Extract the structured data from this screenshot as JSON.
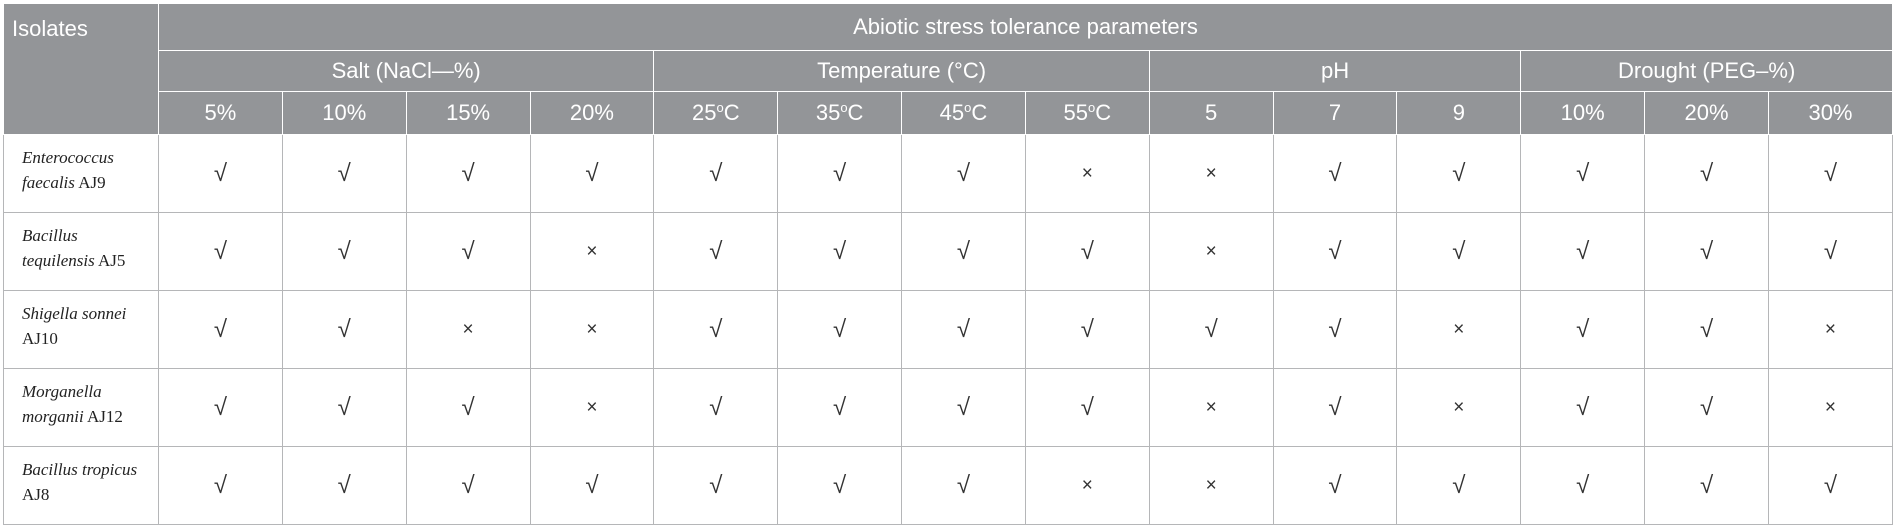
{
  "header": {
    "isolates_label": "Isolates",
    "group_title": "Abiotic stress tolerance parameters",
    "groups": [
      {
        "label": "Salt (NaCl—%)",
        "span": 4,
        "columns": [
          "5%",
          "10%",
          "15%",
          "20%"
        ]
      },
      {
        "label": "Temperature (°C)",
        "span": 4,
        "columns": [
          "25°C",
          "35°C",
          "45°C",
          "55°C"
        ]
      },
      {
        "label": "pH",
        "span": 3,
        "columns": [
          "5",
          "7",
          "9"
        ]
      },
      {
        "label": "Drought (PEG–%)",
        "span": 3,
        "columns": [
          "10%",
          "20%",
          "30%"
        ]
      }
    ]
  },
  "rows": [
    {
      "species": "Enterococcus faecalis",
      "strain": "AJ9",
      "values": [
        "√",
        "√",
        "√",
        "√",
        "√",
        "√",
        "√",
        "×",
        "×",
        "√",
        "√",
        "√",
        "√",
        "√"
      ]
    },
    {
      "species": "Bacillus tequilensis",
      "strain": "AJ5",
      "values": [
        "√",
        "√",
        "√",
        "×",
        "√",
        "√",
        "√",
        "√",
        "×",
        "√",
        "√",
        "√",
        "√",
        "√"
      ]
    },
    {
      "species": "Shigella sonnei",
      "strain": "AJ10",
      "values": [
        "√",
        "√",
        "×",
        "×",
        "√",
        "√",
        "√",
        "√",
        "√",
        "√",
        "×",
        "√",
        "√",
        "×"
      ]
    },
    {
      "species": "Morganella morganii",
      "strain": "AJ12",
      "values": [
        "√",
        "√",
        "√",
        "×",
        "√",
        "√",
        "√",
        "√",
        "×",
        "√",
        "×",
        "√",
        "√",
        "×"
      ]
    },
    {
      "species": "Bacillus tropicus",
      "strain": "AJ8",
      "values": [
        "√",
        "√",
        "√",
        "√",
        "√",
        "√",
        "√",
        "×",
        "×",
        "√",
        "√",
        "√",
        "√",
        "√"
      ]
    }
  ]
}
